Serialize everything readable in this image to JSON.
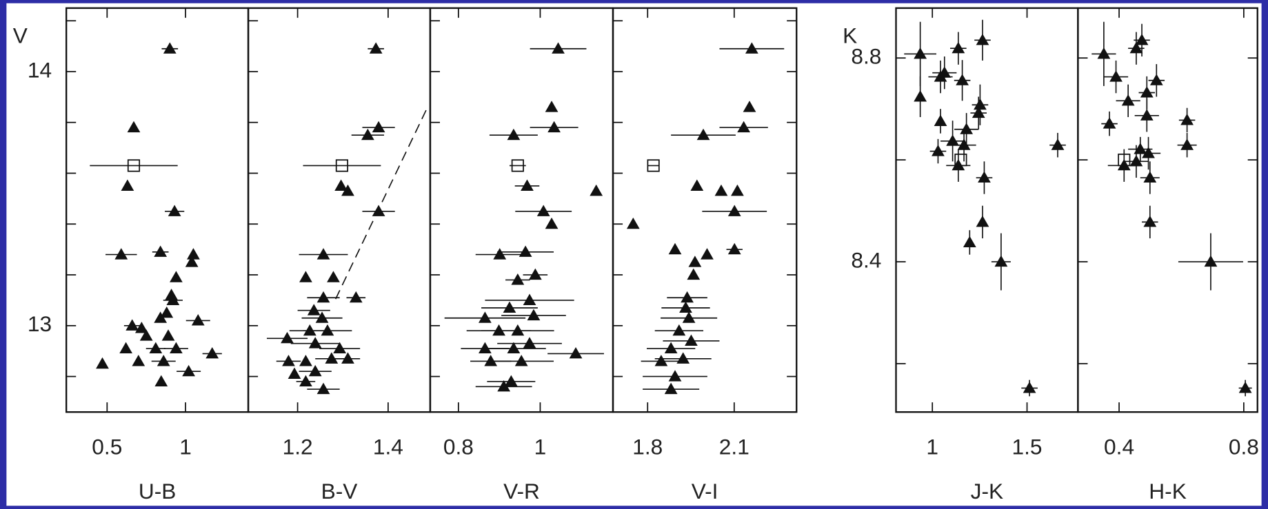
{
  "chart_data": [
    {
      "type": "scatter",
      "xlabel": "U-B",
      "xlim": [
        0.24,
        1.4
      ],
      "xticks": [
        0.5,
        1
      ],
      "ylabel": "V",
      "ylim": [
        12.66,
        14.25
      ],
      "yticks": [
        13,
        14
      ],
      "yminorticks": [
        12.8,
        13.2,
        13.4,
        13.6,
        13.8,
        14.2
      ],
      "x": [
        0.47,
        0.845,
        1.02,
        0.7,
        0.86,
        1.17,
        0.62,
        0.81,
        0.94,
        0.75,
        0.89,
        0.66,
        0.72,
        0.84,
        1.08,
        0.88,
        0.92,
        0.91,
        0.94,
        1.04,
        1.05,
        0.59,
        0.84,
        0.93,
        0.63,
        0.67,
        0.9
      ],
      "y": [
        12.85,
        12.78,
        12.82,
        12.86,
        12.86,
        12.89,
        12.91,
        12.91,
        12.91,
        12.96,
        12.96,
        13.0,
        12.99,
        13.03,
        13.02,
        13.05,
        13.1,
        13.12,
        13.19,
        13.25,
        13.28,
        13.28,
        13.29,
        13.45,
        13.55,
        13.78,
        14.09
      ],
      "xerr": [
        0,
        0,
        0.077,
        0,
        0.077,
        0.062,
        0,
        0.062,
        0.077,
        0,
        0,
        0.052,
        0,
        0,
        0.077,
        0,
        0.062,
        0,
        0,
        0,
        0,
        0.1,
        0.052,
        0.062,
        0,
        0,
        0.052
      ],
      "marked_point": {
        "x": 0.67,
        "y": 13.63,
        "xerr": 0.28
      }
    },
    {
      "type": "scatter",
      "xlabel": "B-V",
      "xlim": [
        1.091,
        1.493
      ],
      "xticks": [
        1.2,
        1.4
      ],
      "x": [
        1.257,
        1.218,
        1.193,
        1.239,
        1.18,
        1.218,
        1.275,
        1.311,
        1.177,
        1.239,
        1.293,
        1.227,
        1.266,
        1.254,
        1.236,
        1.257,
        1.329,
        1.218,
        1.279,
        1.257,
        1.379,
        1.311,
        1.296,
        1.355,
        1.379,
        1.373
      ],
      "y": [
        12.75,
        12.78,
        12.81,
        12.82,
        12.86,
        12.86,
        12.87,
        12.87,
        12.95,
        12.93,
        12.91,
        12.98,
        12.98,
        13.03,
        13.06,
        13.11,
        13.11,
        13.19,
        13.19,
        13.28,
        13.45,
        13.53,
        13.55,
        13.75,
        13.78,
        14.09
      ],
      "xerr": [
        0.036,
        0.021,
        0,
        0.036,
        0.027,
        0,
        0.036,
        0.027,
        0.045,
        0.054,
        0.045,
        0.045,
        0.054,
        0.045,
        0.036,
        0.036,
        0.021,
        0,
        0,
        0.054,
        0.036,
        0,
        0,
        0.036,
        0.036,
        0.018
      ],
      "marked_point": {
        "x": 1.298,
        "y": 13.63,
        "xerr": 0.086
      },
      "dashed_line": {
        "x": [
          1.284,
          1.489
        ],
        "y": [
          13.105,
          13.867
        ]
      }
    },
    {
      "type": "scatter",
      "xlabel": "V-R",
      "xlim": [
        0.731,
        1.178
      ],
      "xticks": [
        0.8,
        1
      ],
      "x": [
        0.911,
        0.929,
        0.879,
        0.954,
        1.087,
        0.865,
        0.935,
        0.974,
        0.899,
        0.945,
        0.865,
        0.984,
        0.925,
        0.974,
        0.945,
        0.988,
        0.901,
        0.964,
        1.028,
        1.008,
        0.968,
        1.137,
        0.935,
        1.034,
        1.028,
        1.044
      ],
      "y": [
        12.76,
        12.78,
        12.86,
        12.86,
        12.89,
        12.91,
        12.91,
        12.93,
        12.98,
        12.98,
        13.03,
        13.04,
        13.07,
        13.1,
        13.18,
        13.2,
        13.28,
        13.29,
        13.4,
        13.45,
        13.55,
        13.53,
        13.75,
        13.78,
        13.86,
        14.09
      ],
      "xerr": [
        0.069,
        0.059,
        0.05,
        0.079,
        0.069,
        0.059,
        0.079,
        0.079,
        0.079,
        0.089,
        0.099,
        0.079,
        0.069,
        0.109,
        0.03,
        0.03,
        0.059,
        0.069,
        0,
        0.069,
        0.03,
        0,
        0.059,
        0.059,
        0,
        0.069
      ],
      "marked_point": {
        "x": 0.945,
        "y": 13.63,
        "xerr": 0.02
      }
    },
    {
      "type": "scatter",
      "xlabel": "V-I",
      "xlim": [
        1.68,
        2.316
      ],
      "xticks": [
        1.8,
        2.1
      ],
      "x": [
        1.881,
        1.895,
        1.847,
        1.923,
        1.881,
        1.951,
        1.909,
        1.943,
        1.932,
        1.937,
        1.959,
        1.964,
        2.006,
        1.895,
        2.101,
        1.75,
        2.101,
        1.971,
        2.055,
        2.111,
        1.993,
        2.133,
        2.153,
        2.161
      ],
      "y": [
        12.75,
        12.8,
        12.86,
        12.87,
        12.91,
        12.94,
        12.98,
        13.03,
        13.07,
        13.11,
        13.2,
        13.25,
        13.28,
        13.3,
        13.3,
        13.4,
        13.45,
        13.55,
        13.53,
        13.53,
        13.75,
        13.78,
        13.86,
        14.09
      ],
      "xerr": [
        0.098,
        0.112,
        0.07,
        0.098,
        0.084,
        0.098,
        0.084,
        0.098,
        0.084,
        0.07,
        0,
        0,
        0,
        0,
        0.028,
        0,
        0.112,
        0,
        0,
        0,
        0.112,
        0.084,
        0,
        0.112
      ],
      "marked_point": {
        "x": 1.82,
        "y": 13.63,
        "xerr": 0.02
      }
    },
    {
      "type": "scatter",
      "xlabel": "J-K",
      "xlim": [
        0.808,
        1.769
      ],
      "xticks": [
        1,
        1.5
      ],
      "ylabel": "K",
      "ylim": [
        8.105,
        8.898
      ],
      "yticks": [
        8.4,
        8.8
      ],
      "yminorticks": [
        8.2,
        8.6
      ],
      "x": [
        1.513,
        1.363,
        1.197,
        1.265,
        1.274,
        1.137,
        1.03,
        1.167,
        1.662,
        1.107,
        1.043,
        1.18,
        1.244,
        1.252,
        0.936,
        1.043,
        1.064,
        1.158,
        0.936,
        1.137,
        1.265
      ],
      "y": [
        8.152,
        8.4,
        8.438,
        8.478,
        8.565,
        8.589,
        8.617,
        8.629,
        8.629,
        8.637,
        8.676,
        8.66,
        8.692,
        8.708,
        8.724,
        8.763,
        8.771,
        8.756,
        8.808,
        8.819,
        8.835
      ],
      "xerr": [
        0.043,
        0.051,
        0,
        0,
        0.043,
        0.064,
        0.043,
        0.064,
        0.043,
        0.064,
        0,
        0.064,
        0.043,
        0.043,
        0,
        0.064,
        0.064,
        0.043,
        0.085,
        0.043,
        0.043
      ],
      "yerr": [
        0.016,
        0.056,
        0.024,
        0.032,
        0.032,
        0.032,
        0.024,
        0.032,
        0.024,
        0.04,
        0.024,
        0.032,
        0.032,
        0.04,
        0.04,
        0.032,
        0.032,
        0.04,
        0.063,
        0.032,
        0.04
      ],
      "marked_point": {
        "x": 1.15,
        "y": 8.6
      }
    },
    {
      "type": "scatter",
      "xlabel": "H-K",
      "xlim": [
        0.268,
        0.844
      ],
      "xticks": [
        0.4,
        0.8
      ],
      "x": [
        0.805,
        0.694,
        0.499,
        0.499,
        0.416,
        0.455,
        0.468,
        0.618,
        0.494,
        0.369,
        0.489,
        0.618,
        0.429,
        0.489,
        0.52,
        0.39,
        0.351,
        0.455,
        0.473
      ],
      "y": [
        8.152,
        8.4,
        8.478,
        8.565,
        8.589,
        8.597,
        8.621,
        8.629,
        8.613,
        8.671,
        8.687,
        8.678,
        8.716,
        8.732,
        8.756,
        8.763,
        8.808,
        8.819,
        8.835
      ],
      "xerr": [
        0.021,
        0.104,
        0.026,
        0.031,
        0.052,
        0.039,
        0.039,
        0.031,
        0.039,
        0.026,
        0.039,
        0.026,
        0.039,
        0.026,
        0.026,
        0.039,
        0.039,
        0.026,
        0.026
      ],
      "yerr": [
        0.016,
        0.056,
        0.032,
        0.032,
        0.032,
        0.032,
        0.024,
        0.024,
        0.032,
        0.024,
        0.032,
        0.024,
        0.032,
        0.032,
        0.032,
        0.032,
        0.063,
        0.032,
        0.032
      ],
      "marked_point": {
        "x": 0.416,
        "y": 8.6
      }
    }
  ]
}
